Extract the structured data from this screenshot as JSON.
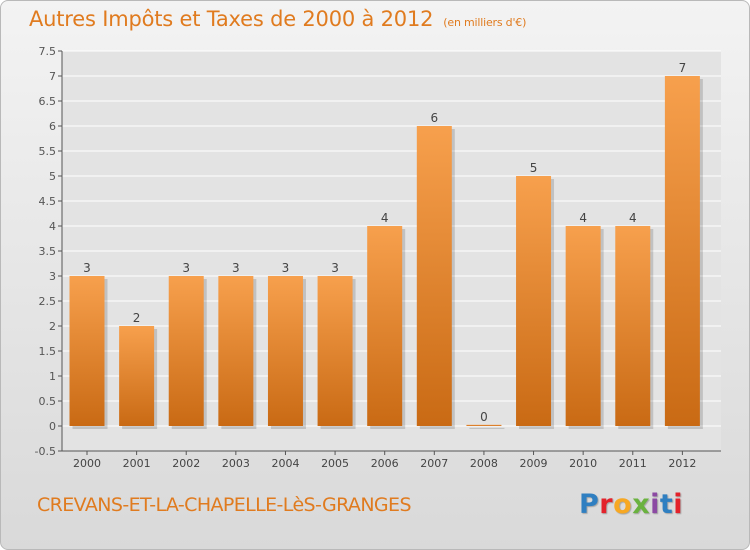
{
  "header": {
    "title": "Autres Impôts et Taxes de 2000 à 2012",
    "unit": "(en milliers d'€)"
  },
  "footer": {
    "commune": "CREVANS-ET-LA-CHAPELLE-LèS-GRANGES",
    "logo_letters": [
      "P",
      "r",
      "o",
      "x",
      "i",
      "t",
      "i"
    ]
  },
  "colors": {
    "bar_top": "#f7a04d",
    "bar_bottom": "#c96a14",
    "accent": "#e07b1f",
    "grid": "#ffffff"
  },
  "chart_data": {
    "type": "bar",
    "title": "Autres Impôts et Taxes de 2000 à 2012",
    "subtitle": "(en milliers d'€)",
    "categories": [
      "2000",
      "2001",
      "2002",
      "2003",
      "2004",
      "2005",
      "2006",
      "2007",
      "2008",
      "2009",
      "2010",
      "2011",
      "2012"
    ],
    "values": [
      3,
      2,
      3,
      3,
      3,
      3,
      4,
      6,
      0,
      5,
      4,
      4,
      7
    ],
    "ylim": [
      -0.5,
      7.5
    ],
    "yticks": [
      "-0.5",
      "0",
      "0.5",
      "1",
      "1.5",
      "2",
      "2.5",
      "3",
      "3.5",
      "4",
      "4.5",
      "5",
      "5.5",
      "6",
      "6.5",
      "7",
      "7.5"
    ],
    "ytick_values": [
      -0.5,
      0,
      0.5,
      1,
      1.5,
      2,
      2.5,
      3,
      3.5,
      4,
      4.5,
      5,
      5.5,
      6,
      6.5,
      7,
      7.5
    ],
    "grid": true,
    "legend": "none"
  }
}
